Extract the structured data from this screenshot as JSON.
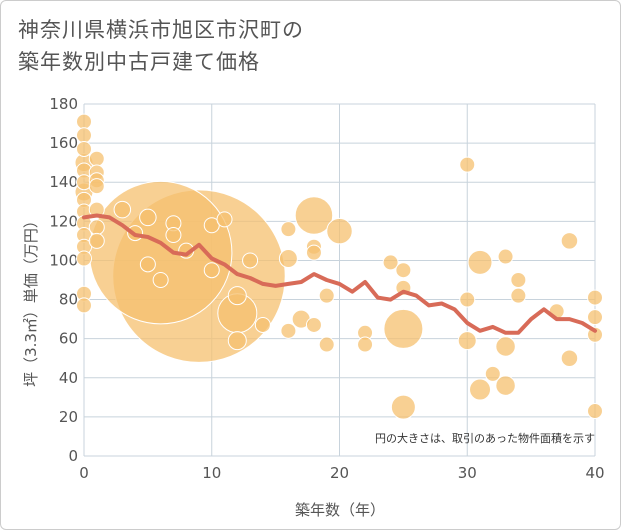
{
  "title_line1": "神奈川県横浜市旭区市沢町の",
  "title_line2": "築年数別中古戸建て価格",
  "note": "円の大きさは、取引のあった物件面積を示す",
  "colors": {
    "bubble": "#f5c06f",
    "bubble_stroke": "#ffffff",
    "line": "#d86b58",
    "grid": "#c8d3dc",
    "text": "#555555"
  },
  "chart_data": {
    "type": "scatter",
    "xlabel": "築年数（年）",
    "ylabel": "坪（3.3㎡）単価（万円）",
    "xlim": [
      0,
      40
    ],
    "ylim": [
      0,
      180
    ],
    "xticks": [
      0,
      10,
      20,
      30,
      40
    ],
    "yticks": [
      0,
      20,
      40,
      60,
      80,
      100,
      120,
      140,
      160,
      180
    ],
    "grid": true,
    "bubbles": [
      {
        "x": 0,
        "y": 171,
        "s": 1
      },
      {
        "x": 0,
        "y": 164,
        "s": 1
      },
      {
        "x": 0,
        "y": 157,
        "s": 1
      },
      {
        "x": 0,
        "y": 150,
        "s": 1.2
      },
      {
        "x": 0,
        "y": 146,
        "s": 1
      },
      {
        "x": 0,
        "y": 140,
        "s": 1
      },
      {
        "x": 0,
        "y": 135,
        "s": 1.2
      },
      {
        "x": 0,
        "y": 131,
        "s": 1
      },
      {
        "x": 0,
        "y": 125,
        "s": 1
      },
      {
        "x": 0,
        "y": 119,
        "s": 1
      },
      {
        "x": 0,
        "y": 113,
        "s": 1
      },
      {
        "x": 0,
        "y": 107,
        "s": 1
      },
      {
        "x": 0,
        "y": 101,
        "s": 1
      },
      {
        "x": 0,
        "y": 83,
        "s": 1
      },
      {
        "x": 0,
        "y": 77,
        "s": 1
      },
      {
        "x": 1,
        "y": 152,
        "s": 1
      },
      {
        "x": 1,
        "y": 145,
        "s": 1
      },
      {
        "x": 1,
        "y": 141,
        "s": 1
      },
      {
        "x": 1,
        "y": 138,
        "s": 1
      },
      {
        "x": 1,
        "y": 126,
        "s": 1
      },
      {
        "x": 1,
        "y": 117,
        "s": 1
      },
      {
        "x": 1,
        "y": 110,
        "s": 1
      },
      {
        "x": 3,
        "y": 126,
        "s": 1.1
      },
      {
        "x": 4,
        "y": 114,
        "s": 1
      },
      {
        "x": 5,
        "y": 122,
        "s": 1.1
      },
      {
        "x": 5,
        "y": 98,
        "s": 1
      },
      {
        "x": 6,
        "y": 104,
        "s": 9.5
      },
      {
        "x": 6,
        "y": 90,
        "s": 1
      },
      {
        "x": 7,
        "y": 119,
        "s": 1
      },
      {
        "x": 7,
        "y": 113,
        "s": 1
      },
      {
        "x": 8,
        "y": 105,
        "s": 1
      },
      {
        "x": 9,
        "y": 92,
        "s": 11.5
      },
      {
        "x": 10,
        "y": 118,
        "s": 1
      },
      {
        "x": 10,
        "y": 95,
        "s": 1
      },
      {
        "x": 11,
        "y": 121,
        "s": 1
      },
      {
        "x": 12,
        "y": 82,
        "s": 1.2
      },
      {
        "x": 12,
        "y": 73,
        "s": 2.6
      },
      {
        "x": 12,
        "y": 59,
        "s": 1.2
      },
      {
        "x": 13,
        "y": 100,
        "s": 1
      },
      {
        "x": 14,
        "y": 67,
        "s": 1
      },
      {
        "x": 16,
        "y": 116,
        "s": 1
      },
      {
        "x": 16,
        "y": 101,
        "s": 1.2
      },
      {
        "x": 16,
        "y": 64,
        "s": 1
      },
      {
        "x": 17,
        "y": 70,
        "s": 1.2
      },
      {
        "x": 18,
        "y": 123,
        "s": 2.5
      },
      {
        "x": 18,
        "y": 107,
        "s": 1
      },
      {
        "x": 18,
        "y": 104,
        "s": 1
      },
      {
        "x": 18,
        "y": 67,
        "s": 1
      },
      {
        "x": 19,
        "y": 82,
        "s": 1
      },
      {
        "x": 19,
        "y": 57,
        "s": 1
      },
      {
        "x": 20,
        "y": 115,
        "s": 1.7
      },
      {
        "x": 22,
        "y": 63,
        "s": 1
      },
      {
        "x": 22,
        "y": 57,
        "s": 1
      },
      {
        "x": 24,
        "y": 99,
        "s": 1
      },
      {
        "x": 25,
        "y": 95,
        "s": 1
      },
      {
        "x": 25,
        "y": 86,
        "s": 1
      },
      {
        "x": 25,
        "y": 65,
        "s": 2.6
      },
      {
        "x": 25,
        "y": 25,
        "s": 1.6
      },
      {
        "x": 30,
        "y": 149,
        "s": 1
      },
      {
        "x": 30,
        "y": 80,
        "s": 1
      },
      {
        "x": 30,
        "y": 59,
        "s": 1.2
      },
      {
        "x": 31,
        "y": 99,
        "s": 1.6
      },
      {
        "x": 31,
        "y": 34,
        "s": 1.4
      },
      {
        "x": 32,
        "y": 42,
        "s": 1
      },
      {
        "x": 33,
        "y": 102,
        "s": 1
      },
      {
        "x": 33,
        "y": 56,
        "s": 1.3
      },
      {
        "x": 33,
        "y": 36,
        "s": 1.3
      },
      {
        "x": 34,
        "y": 90,
        "s": 1
      },
      {
        "x": 34,
        "y": 82,
        "s": 1
      },
      {
        "x": 37,
        "y": 74,
        "s": 1
      },
      {
        "x": 38,
        "y": 110,
        "s": 1.1
      },
      {
        "x": 38,
        "y": 50,
        "s": 1.1
      },
      {
        "x": 40,
        "y": 81,
        "s": 1
      },
      {
        "x": 40,
        "y": 71,
        "s": 1
      },
      {
        "x": 40,
        "y": 62,
        "s": 1
      },
      {
        "x": 40,
        "y": 23,
        "s": 1
      }
    ],
    "trend": {
      "x": [
        0,
        1,
        2,
        3,
        4,
        5,
        6,
        7,
        8,
        9,
        10,
        11,
        12,
        13,
        14,
        15,
        16,
        17,
        18,
        19,
        20,
        21,
        22,
        23,
        24,
        25,
        26,
        27,
        28,
        29,
        30,
        31,
        32,
        33,
        34,
        35,
        36,
        37,
        38,
        39,
        40
      ],
      "y": [
        122,
        123,
        122,
        118,
        113,
        112,
        109,
        104,
        103,
        108,
        101,
        98,
        93,
        91,
        88,
        87,
        88,
        89,
        93,
        90,
        88,
        84,
        89,
        81,
        80,
        84,
        82,
        77,
        78,
        75,
        68,
        64,
        66,
        63,
        63,
        70,
        75,
        70,
        70,
        68,
        64
      ]
    }
  }
}
